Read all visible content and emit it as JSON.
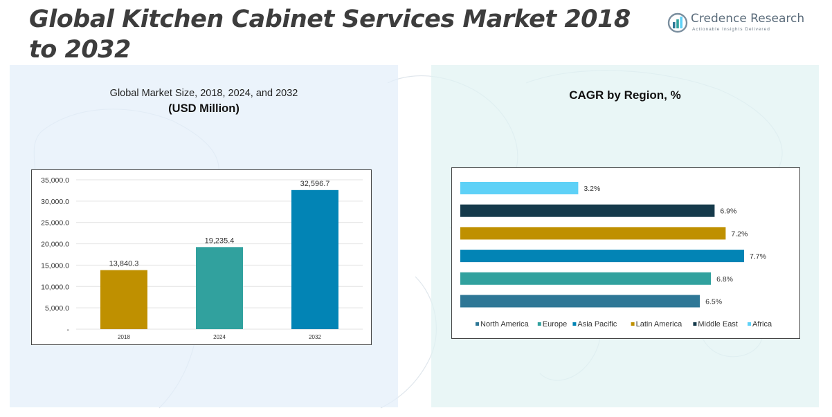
{
  "title": "Global Kitchen Cabinet Services Market 2018 to 2032",
  "logo": {
    "name": "Credence Research",
    "tagline": "Actionable Insights Delivered"
  },
  "chart_data": [
    {
      "type": "bar",
      "title": "Global Market Size, 2018, 2024, and 2032",
      "subtitle": "(USD Million)",
      "categories": [
        "2018",
        "2024",
        "2032"
      ],
      "values": [
        13840.3,
        19235.4,
        32596.7
      ],
      "value_labels": [
        "13,840.3",
        "19,235.4",
        "32,596.7"
      ],
      "colors": [
        "#bf9000",
        "#31a19e",
        "#0284b5"
      ],
      "ylim": [
        0,
        35000
      ],
      "yticks": [
        0,
        5000,
        10000,
        15000,
        20000,
        25000,
        30000,
        35000
      ],
      "ytick_labels": [
        "-",
        "5,000.0",
        "10,000.0",
        "15,000.0",
        "20,000.0",
        "25,000.0",
        "30,000.0",
        "35,000.0"
      ],
      "grid": true,
      "xlabel": "",
      "ylabel": ""
    },
    {
      "type": "bar",
      "orientation": "horizontal",
      "title": "CAGR by Region, %",
      "categories": [
        "Africa",
        "Middle East",
        "Latin America",
        "Asia Pacific",
        "Europe",
        "North America"
      ],
      "values": [
        3.2,
        6.9,
        7.2,
        7.7,
        6.8,
        6.5
      ],
      "value_labels": [
        "3.2%",
        "6.9%",
        "7.2%",
        "7.7%",
        "6.8%",
        "6.5%"
      ],
      "colors": [
        "#5ed1f7",
        "#153a4b",
        "#bf9000",
        "#0284b5",
        "#31a19e",
        "#2e7796"
      ],
      "xlim": [
        0,
        7.7
      ],
      "legend_position": "bottom",
      "legend": [
        {
          "label": "North America",
          "color": "#2e7796"
        },
        {
          "label": "Europe",
          "color": "#31a19e"
        },
        {
          "label": "Asia Pacific",
          "color": "#0284b5"
        },
        {
          "label": "Latin America",
          "color": "#bf9000"
        },
        {
          "label": "Middle East",
          "color": "#153a4b"
        },
        {
          "label": "Africa",
          "color": "#5ed1f7"
        }
      ]
    }
  ]
}
